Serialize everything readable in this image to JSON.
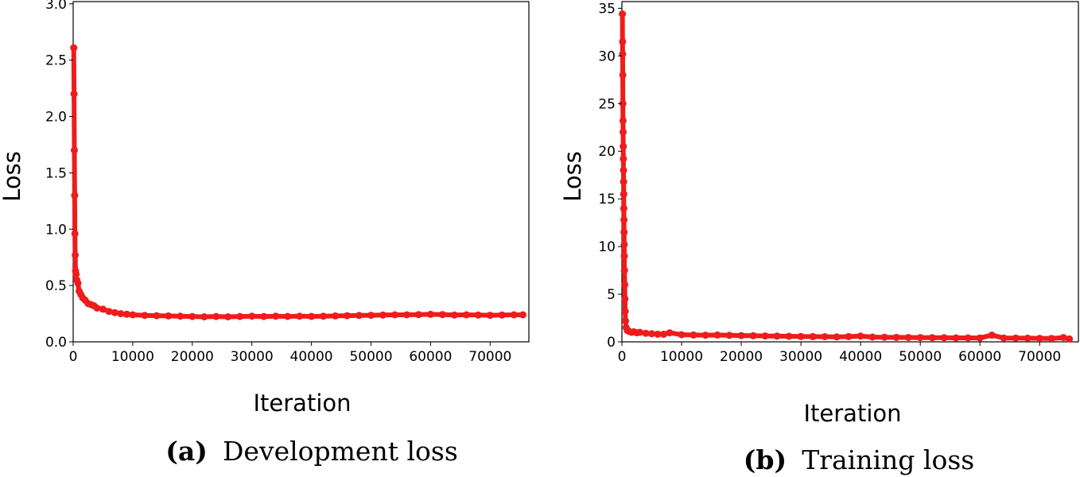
{
  "colors": {
    "marker": "#ee1c1c",
    "axis": "#000000"
  },
  "chart_data": [
    {
      "type": "scatter",
      "caption_tag": "(a)",
      "caption": "Development loss",
      "xlabel": "Iteration",
      "ylabel": "Loss",
      "xlim": [
        0,
        76500
      ],
      "ylim": [
        0,
        3.02
      ],
      "xticks": [
        "0",
        "10000",
        "20000",
        "30000",
        "40000",
        "50000",
        "60000",
        "70000"
      ],
      "xtick_values": [
        0,
        10000,
        20000,
        30000,
        40000,
        50000,
        60000,
        70000
      ],
      "yticks": [
        "0.0",
        "0.5",
        "1.0",
        "1.5",
        "2.0",
        "2.5",
        "3.0"
      ],
      "ytick_values": [
        0,
        0.5,
        1.0,
        1.5,
        2.0,
        2.5,
        3.0
      ],
      "grid": false,
      "points": [
        {
          "x": 100,
          "y": 2.61
        },
        {
          "x": 150,
          "y": 2.2
        },
        {
          "x": 200,
          "y": 1.7
        },
        {
          "x": 250,
          "y": 1.3
        },
        {
          "x": 300,
          "y": 0.96
        },
        {
          "x": 350,
          "y": 0.77
        },
        {
          "x": 400,
          "y": 0.63
        },
        {
          "x": 500,
          "y": 0.6
        },
        {
          "x": 600,
          "y": 0.55
        },
        {
          "x": 800,
          "y": 0.52
        },
        {
          "x": 1000,
          "y": 0.45
        },
        {
          "x": 1300,
          "y": 0.42
        },
        {
          "x": 1600,
          "y": 0.39
        },
        {
          "x": 2000,
          "y": 0.37
        },
        {
          "x": 2500,
          "y": 0.34
        },
        {
          "x": 3000,
          "y": 0.33
        },
        {
          "x": 3500,
          "y": 0.32
        },
        {
          "x": 4000,
          "y": 0.3
        },
        {
          "x": 5000,
          "y": 0.29
        },
        {
          "x": 6000,
          "y": 0.27
        },
        {
          "x": 7000,
          "y": 0.26
        },
        {
          "x": 8000,
          "y": 0.25
        },
        {
          "x": 9000,
          "y": 0.245
        },
        {
          "x": 10000,
          "y": 0.24
        },
        {
          "x": 12000,
          "y": 0.235
        },
        {
          "x": 14000,
          "y": 0.232
        },
        {
          "x": 16000,
          "y": 0.23
        },
        {
          "x": 18000,
          "y": 0.228
        },
        {
          "x": 20000,
          "y": 0.225
        },
        {
          "x": 22000,
          "y": 0.222
        },
        {
          "x": 24000,
          "y": 0.225
        },
        {
          "x": 26000,
          "y": 0.222
        },
        {
          "x": 28000,
          "y": 0.225
        },
        {
          "x": 30000,
          "y": 0.228
        },
        {
          "x": 32000,
          "y": 0.225
        },
        {
          "x": 34000,
          "y": 0.228
        },
        {
          "x": 36000,
          "y": 0.226
        },
        {
          "x": 38000,
          "y": 0.228
        },
        {
          "x": 40000,
          "y": 0.226
        },
        {
          "x": 42000,
          "y": 0.228
        },
        {
          "x": 44000,
          "y": 0.23
        },
        {
          "x": 46000,
          "y": 0.232
        },
        {
          "x": 48000,
          "y": 0.234
        },
        {
          "x": 50000,
          "y": 0.236
        },
        {
          "x": 52000,
          "y": 0.238
        },
        {
          "x": 54000,
          "y": 0.24
        },
        {
          "x": 56000,
          "y": 0.24
        },
        {
          "x": 58000,
          "y": 0.242
        },
        {
          "x": 60000,
          "y": 0.244
        },
        {
          "x": 62000,
          "y": 0.242
        },
        {
          "x": 64000,
          "y": 0.238
        },
        {
          "x": 66000,
          "y": 0.24
        },
        {
          "x": 68000,
          "y": 0.238
        },
        {
          "x": 70000,
          "y": 0.236
        },
        {
          "x": 72000,
          "y": 0.238
        },
        {
          "x": 74000,
          "y": 0.24
        },
        {
          "x": 75500,
          "y": 0.24
        }
      ]
    },
    {
      "type": "scatter",
      "caption_tag": "(b)",
      "caption": "Training loss",
      "xlabel": "Iteration",
      "ylabel": "Loss",
      "xlim": [
        0,
        76500
      ],
      "ylim": [
        0,
        35.7
      ],
      "xticks": [
        "0",
        "10000",
        "20000",
        "30000",
        "40000",
        "50000",
        "60000",
        "70000"
      ],
      "xtick_values": [
        0,
        10000,
        20000,
        30000,
        40000,
        50000,
        60000,
        70000
      ],
      "yticks": [
        "0",
        "5",
        "10",
        "15",
        "20",
        "25",
        "30",
        "35"
      ],
      "ytick_values": [
        0,
        5,
        10,
        15,
        20,
        25,
        30,
        35
      ],
      "grid": false,
      "points": [
        {
          "x": 80,
          "y": 34.4
        },
        {
          "x": 100,
          "y": 31.5
        },
        {
          "x": 120,
          "y": 30.2
        },
        {
          "x": 140,
          "y": 28.0
        },
        {
          "x": 160,
          "y": 25.0
        },
        {
          "x": 180,
          "y": 23.2
        },
        {
          "x": 200,
          "y": 22.0
        },
        {
          "x": 220,
          "y": 20.5
        },
        {
          "x": 240,
          "y": 19.2
        },
        {
          "x": 260,
          "y": 18.0
        },
        {
          "x": 280,
          "y": 16.8
        },
        {
          "x": 300,
          "y": 15.5
        },
        {
          "x": 320,
          "y": 14.0
        },
        {
          "x": 340,
          "y": 12.8
        },
        {
          "x": 360,
          "y": 11.5
        },
        {
          "x": 380,
          "y": 10.2
        },
        {
          "x": 400,
          "y": 9.0
        },
        {
          "x": 430,
          "y": 7.5
        },
        {
          "x": 460,
          "y": 6.0
        },
        {
          "x": 500,
          "y": 4.5
        },
        {
          "x": 550,
          "y": 3.2
        },
        {
          "x": 600,
          "y": 2.2
        },
        {
          "x": 700,
          "y": 1.5
        },
        {
          "x": 900,
          "y": 1.2
        },
        {
          "x": 1200,
          "y": 1.1
        },
        {
          "x": 1600,
          "y": 1.0
        },
        {
          "x": 2000,
          "y": 1.05
        },
        {
          "x": 2500,
          "y": 0.95
        },
        {
          "x": 3000,
          "y": 1.0
        },
        {
          "x": 4000,
          "y": 0.9
        },
        {
          "x": 5000,
          "y": 0.85
        },
        {
          "x": 6000,
          "y": 0.8
        },
        {
          "x": 7000,
          "y": 0.8
        },
        {
          "x": 8000,
          "y": 0.95
        },
        {
          "x": 10000,
          "y": 0.75
        },
        {
          "x": 12000,
          "y": 0.72
        },
        {
          "x": 14000,
          "y": 0.7
        },
        {
          "x": 16000,
          "y": 0.72
        },
        {
          "x": 18000,
          "y": 0.68
        },
        {
          "x": 20000,
          "y": 0.66
        },
        {
          "x": 22000,
          "y": 0.64
        },
        {
          "x": 24000,
          "y": 0.62
        },
        {
          "x": 26000,
          "y": 0.6
        },
        {
          "x": 28000,
          "y": 0.58
        },
        {
          "x": 30000,
          "y": 0.56
        },
        {
          "x": 32000,
          "y": 0.55
        },
        {
          "x": 34000,
          "y": 0.54
        },
        {
          "x": 36000,
          "y": 0.52
        },
        {
          "x": 38000,
          "y": 0.55
        },
        {
          "x": 40000,
          "y": 0.6
        },
        {
          "x": 42000,
          "y": 0.5
        },
        {
          "x": 44000,
          "y": 0.48
        },
        {
          "x": 46000,
          "y": 0.47
        },
        {
          "x": 48000,
          "y": 0.46
        },
        {
          "x": 50000,
          "y": 0.45
        },
        {
          "x": 52000,
          "y": 0.44
        },
        {
          "x": 54000,
          "y": 0.43
        },
        {
          "x": 56000,
          "y": 0.42
        },
        {
          "x": 58000,
          "y": 0.42
        },
        {
          "x": 60000,
          "y": 0.41
        },
        {
          "x": 62000,
          "y": 0.7
        },
        {
          "x": 64000,
          "y": 0.4
        },
        {
          "x": 66000,
          "y": 0.39
        },
        {
          "x": 68000,
          "y": 0.38
        },
        {
          "x": 70000,
          "y": 0.37
        },
        {
          "x": 72000,
          "y": 0.36
        },
        {
          "x": 74000,
          "y": 0.45
        },
        {
          "x": 75000,
          "y": 0.3
        }
      ]
    }
  ]
}
